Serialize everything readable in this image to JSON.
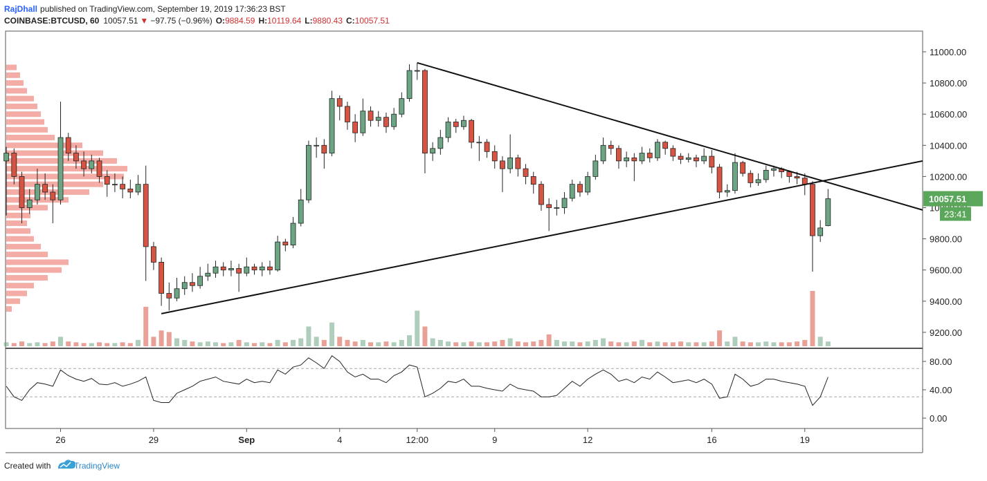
{
  "header": {
    "author": "RajDhall",
    "published": "published on TradingView.com, September 19, 2019 17:36:23 BST",
    "symbol": "COINBASE:BTCUSD, 60",
    "change": "−97.75 (−0.96%)",
    "ohlc_labels": [
      "O:",
      "H:",
      "L:",
      "C:"
    ]
  },
  "footer": {
    "created": "Created with",
    "brand": "TradingView"
  },
  "chart_data": [
    {
      "type": "candlestick",
      "open": [
        10300,
        10350,
        10200,
        10000,
        10050,
        10150,
        10100,
        10050,
        10450,
        10350,
        10300,
        10250,
        10300,
        10200,
        10150,
        10150,
        10120,
        10100,
        10150,
        9750,
        9650,
        9450,
        9420,
        9480,
        9520,
        9500,
        9560,
        9580,
        9620,
        9600,
        9610,
        9580,
        9620,
        9600,
        9620,
        9600,
        9780,
        9760,
        9900,
        10050,
        10400,
        10400,
        10350,
        10700,
        10650,
        10550,
        10480,
        10620,
        10560,
        10580,
        10520,
        10600,
        10700,
        10880,
        10880,
        10350,
        10380,
        10450,
        10550,
        10520,
        10560,
        10420,
        10420,
        10360,
        10300,
        10250,
        10320,
        10250,
        10200,
        10150,
        10020,
        10000,
        10000,
        10060,
        10150,
        10100,
        10200,
        10300,
        10400,
        10380,
        10300,
        10320,
        10300,
        10350,
        10320,
        10420,
        10380,
        10330,
        10310,
        10320,
        10300,
        10330,
        10260,
        10100,
        10110,
        10290,
        10220,
        10160,
        10180,
        10240,
        10250,
        10230,
        10200,
        10190,
        10150,
        9820,
        9884.59
      ],
      "high": [
        10390,
        10380,
        10230,
        10120,
        10250,
        10220,
        10150,
        10680,
        10480,
        10400,
        10360,
        10340,
        10320,
        10240,
        10220,
        10200,
        10180,
        10210,
        10270,
        9780,
        9680,
        9520,
        9550,
        9560,
        9580,
        9620,
        9640,
        9660,
        9650,
        9660,
        9640,
        9680,
        9640,
        9650,
        9660,
        9820,
        9800,
        9940,
        10120,
        10430,
        10450,
        10440,
        10750,
        10720,
        10680,
        10600,
        10700,
        10650,
        10620,
        10610,
        10640,
        10740,
        10920,
        10930,
        10890,
        10420,
        10500,
        10580,
        10570,
        10590,
        10570,
        10460,
        10440,
        10400,
        10330,
        10470,
        10340,
        10280,
        10230,
        10170,
        10060,
        10050,
        10100,
        10180,
        10170,
        10230,
        10340,
        10450,
        10430,
        10400,
        10360,
        10350,
        10390,
        10380,
        10440,
        10430,
        10400,
        10350,
        10350,
        10340,
        10380,
        10370,
        10280,
        10150,
        10350,
        10300,
        10240,
        10220,
        10270,
        10270,
        10260,
        10240,
        10230,
        10220,
        10170,
        9920,
        10119.64
      ],
      "low": [
        9950,
        10150,
        9900,
        9960,
        10020,
        10050,
        9900,
        10020,
        10300,
        10250,
        10200,
        10220,
        10160,
        10070,
        10100,
        10060,
        10060,
        10080,
        9530,
        9600,
        9370,
        9340,
        9400,
        9440,
        9460,
        9480,
        9530,
        9550,
        9560,
        9560,
        9460,
        9560,
        9570,
        9560,
        9570,
        9590,
        9720,
        9740,
        9880,
        10030,
        10320,
        10250,
        10330,
        10560,
        10500,
        10420,
        10460,
        10520,
        10520,
        10480,
        10500,
        10580,
        10680,
        10820,
        10220,
        10300,
        10340,
        10420,
        10480,
        10500,
        10380,
        10300,
        10320,
        10250,
        10100,
        10220,
        10200,
        10150,
        10090,
        9980,
        9850,
        9950,
        9960,
        10040,
        10070,
        10080,
        10180,
        10280,
        10340,
        10250,
        10260,
        10170,
        10280,
        10290,
        10300,
        10340,
        10300,
        10280,
        10290,
        10260,
        10280,
        10220,
        10060,
        10070,
        10090,
        10200,
        10130,
        10140,
        10160,
        10200,
        10190,
        10160,
        10150,
        10080,
        9590,
        9780,
        9880.43
      ],
      "close": [
        10350,
        10200,
        10000,
        10050,
        10150,
        10100,
        10050,
        10450,
        10350,
        10300,
        10250,
        10300,
        10200,
        10150,
        10150,
        10120,
        10100,
        10150,
        9750,
        9650,
        9450,
        9420,
        9480,
        9520,
        9500,
        9560,
        9580,
        9620,
        9600,
        9610,
        9580,
        9620,
        9600,
        9620,
        9600,
        9780,
        9760,
        9900,
        10050,
        10400,
        10400,
        10350,
        10700,
        10650,
        10550,
        10480,
        10620,
        10560,
        10580,
        10520,
        10600,
        10700,
        10880,
        10880,
        10350,
        10380,
        10450,
        10550,
        10520,
        10560,
        10420,
        10420,
        10360,
        10300,
        10250,
        10320,
        10250,
        10200,
        10150,
        10020,
        10000,
        10000,
        10060,
        10150,
        10100,
        10200,
        10300,
        10400,
        10380,
        10300,
        10320,
        10300,
        10350,
        10320,
        10420,
        10380,
        10330,
        10310,
        10320,
        10300,
        10330,
        10260,
        10100,
        10110,
        10290,
        10220,
        10160,
        10180,
        10240,
        10250,
        10230,
        10200,
        10190,
        10150,
        9820,
        9870,
        10057.51
      ],
      "volume": [
        5,
        4,
        6,
        4,
        5,
        4,
        6,
        12,
        6,
        5,
        4,
        4,
        5,
        4,
        4,
        5,
        4,
        8,
        50,
        12,
        20,
        18,
        10,
        8,
        6,
        5,
        6,
        5,
        4,
        5,
        8,
        5,
        4,
        5,
        4,
        8,
        5,
        8,
        10,
        25,
        12,
        8,
        30,
        12,
        8,
        6,
        8,
        5,
        5,
        6,
        5,
        8,
        14,
        45,
        25,
        10,
        8,
        6,
        5,
        5,
        6,
        5,
        5,
        6,
        8,
        10,
        6,
        5,
        6,
        8,
        15,
        8,
        6,
        6,
        5,
        6,
        8,
        10,
        6,
        5,
        5,
        6,
        8,
        5,
        6,
        5,
        5,
        6,
        5,
        5,
        5,
        6,
        20,
        6,
        12,
        6,
        5,
        5,
        6,
        5,
        5,
        5,
        6,
        8,
        70,
        12,
        6
      ],
      "colors": {
        "up": "#6ba583",
        "down": "#d75442"
      },
      "xlim": [
        -0.1,
        118.2
      ],
      "xticks": [
        {
          "value": 7,
          "label": "26"
        },
        {
          "value": 19,
          "label": "29"
        },
        {
          "value": 31,
          "label": "Sep"
        },
        {
          "value": 43,
          "label": "4"
        },
        {
          "value": 53,
          "label": "12:00"
        },
        {
          "value": 63,
          "label": "9"
        },
        {
          "value": 75,
          "label": "12"
        },
        {
          "value": 91,
          "label": "16"
        },
        {
          "value": 103,
          "label": "19"
        }
      ],
      "ylim": [
        9102,
        11133
      ],
      "yticks": [
        {
          "value": 9200,
          "label": "9200.00"
        },
        {
          "value": 9400,
          "label": "9400.00"
        },
        {
          "value": 9600,
          "label": "9600.00"
        },
        {
          "value": 9800,
          "label": "9800.00"
        },
        {
          "value": 10000,
          "label": "10000.00"
        },
        {
          "value": 10200,
          "label": "10200.00"
        },
        {
          "value": 10400,
          "label": "10400.00"
        },
        {
          "value": 10600,
          "label": "10600.00"
        },
        {
          "value": 10800,
          "label": "10800.00"
        },
        {
          "value": 11000,
          "label": "11000.00"
        }
      ],
      "volume_profile": {
        "levels": [
          9350,
          9400,
          9450,
          9500,
          9550,
          9600,
          9650,
          9700,
          9750,
          9800,
          9850,
          9900,
          9950,
          10000,
          10050,
          10100,
          10150,
          10200,
          10250,
          10300,
          10350,
          10400,
          10450,
          10500,
          10550,
          10600,
          10650,
          10700,
          10750,
          10800,
          10850,
          10900
        ],
        "values": [
          8,
          20,
          30,
          40,
          60,
          80,
          90,
          60,
          50,
          40,
          35,
          30,
          35,
          60,
          90,
          120,
          140,
          170,
          175,
          160,
          140,
          110,
          70,
          60,
          55,
          50,
          45,
          40,
          30,
          25,
          20,
          15
        ],
        "color": "#f08a80"
      },
      "trendlines": [
        {
          "x": [
            53,
            118.2
          ],
          "y": [
            10930,
            9985
          ]
        },
        {
          "x": [
            20,
            118.2
          ],
          "y": [
            9320,
            10300
          ]
        }
      ],
      "countdown": "23:41",
      "last_color": "#5aa65a"
    },
    {
      "type": "line",
      "values": [
        45,
        30,
        25,
        40,
        50,
        48,
        45,
        68,
        60,
        55,
        52,
        56,
        48,
        47,
        50,
        45,
        48,
        52,
        58,
        25,
        22,
        22,
        35,
        40,
        45,
        52,
        55,
        58,
        52,
        50,
        48,
        55,
        50,
        52,
        50,
        68,
        62,
        72,
        75,
        85,
        78,
        70,
        88,
        80,
        65,
        58,
        62,
        55,
        55,
        50,
        60,
        65,
        75,
        72,
        30,
        35,
        42,
        52,
        50,
        55,
        45,
        45,
        42,
        40,
        38,
        48,
        42,
        40,
        38,
        30,
        30,
        32,
        42,
        52,
        45,
        55,
        62,
        68,
        62,
        52,
        55,
        50,
        58,
        55,
        65,
        58,
        50,
        52,
        54,
        50,
        55,
        48,
        28,
        30,
        62,
        55,
        45,
        48,
        55,
        55,
        52,
        50,
        48,
        45,
        18,
        30,
        58
      ],
      "color": "#222222",
      "ylim": [
        -14.6,
        97.5
      ],
      "yticks": [
        {
          "value": 0,
          "label": "0.00"
        },
        {
          "value": 40,
          "label": "40.00"
        },
        {
          "value": 80,
          "label": "80.00"
        }
      ],
      "bands": [
        30,
        70
      ]
    }
  ]
}
